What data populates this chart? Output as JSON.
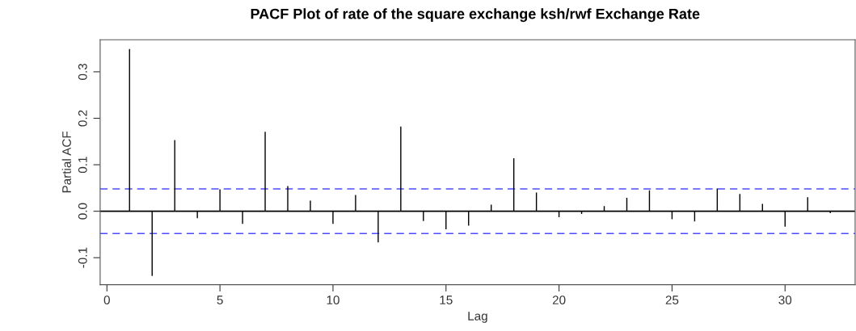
{
  "chart_data": {
    "type": "bar",
    "title": "PACF Plot of rate of the square exchange ksh/rwf Exchange Rate",
    "xlabel": "Lag",
    "ylabel": "Partial ACF",
    "x": [
      1,
      2,
      3,
      4,
      5,
      6,
      7,
      8,
      9,
      10,
      11,
      12,
      13,
      14,
      15,
      16,
      17,
      18,
      19,
      20,
      21,
      22,
      23,
      24,
      25,
      26,
      27,
      28,
      29,
      30,
      31,
      32
    ],
    "series": [
      {
        "color": "#000000",
        "values": [
          0.349,
          -0.139,
          0.153,
          -0.015,
          0.047,
          -0.027,
          0.171,
          0.054,
          0.023,
          -0.027,
          0.035,
          -0.067,
          0.182,
          -0.021,
          -0.039,
          -0.031,
          0.014,
          0.114,
          0.04,
          -0.013,
          -0.006,
          0.011,
          0.029,
          0.045,
          -0.017,
          -0.022,
          0.049,
          0.037,
          0.016,
          -0.033,
          0.03,
          -0.004
        ]
      }
    ],
    "xlim": [
      -0.3,
      33.1
    ],
    "ylim": [
      -0.158,
      0.369
    ],
    "xticks": [
      0,
      5,
      10,
      15,
      20,
      25,
      30
    ],
    "yticks": [
      {
        "value": -0.1,
        "label": "-0.1"
      },
      {
        "value": 0,
        "label": "0.0"
      },
      {
        "value": 0.1,
        "label": "0.1"
      },
      {
        "value": 0.2,
        "label": "0.2"
      },
      {
        "value": 0.3,
        "label": "0.3"
      }
    ],
    "ref_lines": [
      {
        "axis": "y",
        "value": 0,
        "color": "#000000",
        "line_style": "solid"
      },
      {
        "axis": "y",
        "value": 0.048,
        "color": "#4d4dff",
        "line_style": "dashed"
      },
      {
        "axis": "y",
        "value": -0.048,
        "color": "#4d4dff",
        "line_style": "dashed"
      }
    ],
    "grid": false,
    "legend": false
  }
}
